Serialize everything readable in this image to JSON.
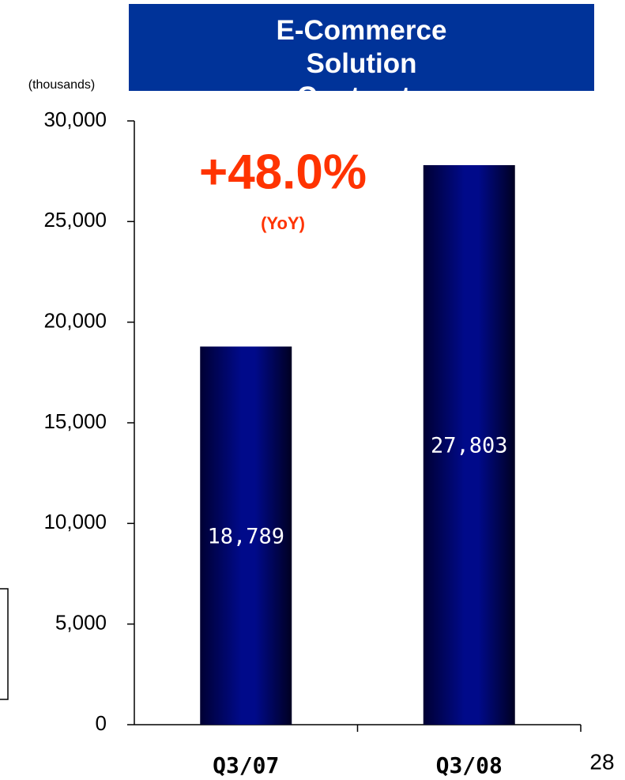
{
  "chart_data": {
    "type": "bar",
    "title": "E-Commerce Solution Contracts",
    "y_label": "(thousands)",
    "categories": [
      "Q3/07",
      "Q3/08"
    ],
    "values": [
      18789,
      27803
    ],
    "value_labels": [
      "18,789",
      "27,803"
    ],
    "color": "#000066",
    "ylim": [
      0,
      30000
    ],
    "yticks": [
      0,
      {
        "value": 5000,
        "label": "5,000"
      },
      {
        "value": 10000,
        "label": "10,000"
      },
      {
        "value": 15000,
        "label": "15,000"
      },
      {
        "value": 20000,
        "label": "20,000"
      },
      {
        "value": 25000,
        "label": "25,000"
      },
      {
        "value": 30000,
        "label": "30,000"
      }
    ],
    "grid": false,
    "annotations": [
      "+48.0%",
      "(YoY)"
    ],
    "annotation_color": "#ff3300",
    "page_number": "28"
  }
}
